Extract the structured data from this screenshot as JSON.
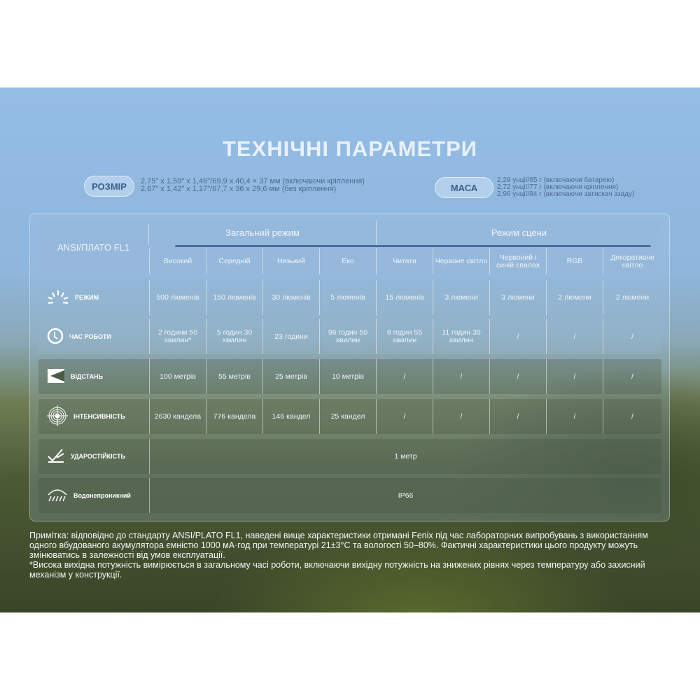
{
  "title": "ТЕХНІЧНІ ПАРАМЕТРИ",
  "size": {
    "label": "РОЗМІР",
    "lines": [
      "2,75\" x 1,59\" x 1,46\"/69,9 x 40,4 × 37 мм (включаючи кріплення)",
      "2,67\" x 1,42\" x 1,17\"/67,7 x 36 x 29,6 мм (без кріплення)"
    ]
  },
  "mass": {
    "label": "МАСА",
    "lines": [
      "2,29 унції/65 г (включаючи батарею)",
      "2,72 унції/77 г (включаючи кріплення)",
      "2,96 унції/84 г (включаючи затискач ззаду)"
    ]
  },
  "table": {
    "corner": "ANSI/ПЛАТО FL1",
    "groups": [
      "Загальний режим",
      "Режим сцени"
    ],
    "columns": [
      "Високий",
      "Середній",
      "Низький",
      "Еко",
      "Читати",
      "Червоне світло",
      "Червоний і синій спалах",
      "RGB",
      "Декоративне світло"
    ],
    "rows": [
      {
        "label": "РЕЖИМ",
        "icon": "sun-rays-icon",
        "values": [
          "500 люменів",
          "150 люменів",
          "30 люменів",
          "5 люменів",
          "15 люменів",
          "3 люмени",
          "3 люмени",
          "2 люмени",
          "2 люмени"
        ]
      },
      {
        "label": "ЧАС РОБОТИ",
        "icon": "clock-icon",
        "values": [
          "2 години 50 хвилин*",
          "5 годин 30 хвилин",
          "23 години",
          "96 годин 50 хвилин",
          "8 годин 55 хвилин",
          "11 годин 35 хвилин",
          "/",
          "/",
          "/"
        ]
      },
      {
        "label": "ВІДСТАНЬ",
        "icon": "distance-icon",
        "values": [
          "100 метрів",
          "55 метрів",
          "25 метрів",
          "10 метрів",
          "/",
          "/",
          "/",
          "/",
          "/"
        ]
      },
      {
        "label": "ІНТЕНСИВНІСТЬ",
        "icon": "target-icon",
        "values": [
          "2630 кандела",
          "776 кандела",
          "146 кандел",
          "25 кандел",
          "/",
          "/",
          "/",
          "/",
          "/"
        ]
      },
      {
        "label": "УДАРОСТІЙКІСТЬ",
        "icon": "impact-icon",
        "span": "1 метр"
      },
      {
        "label": "Водонепроникний",
        "icon": "water-icon",
        "span": "IP66"
      }
    ]
  },
  "note": [
    "Примітка: відповідно до стандарту ANSI/PLATO FL1, наведені вище характеристики отримані Fenix під час лабораторних випробувань з використанням одного вбудованого акумулятора ємністю 1000 мА·год при температурі 21±3°C та вологості 50–80%. Фактичні характеристики цього продукту можуть змінюватись в залежності від умов експлуатації.",
    "*Висока вихідна потужність вимірюється в загальному часі роботи, включаючи вихідну потужність на знижених рівнях через температуру або захисний механізм у конструкції."
  ]
}
